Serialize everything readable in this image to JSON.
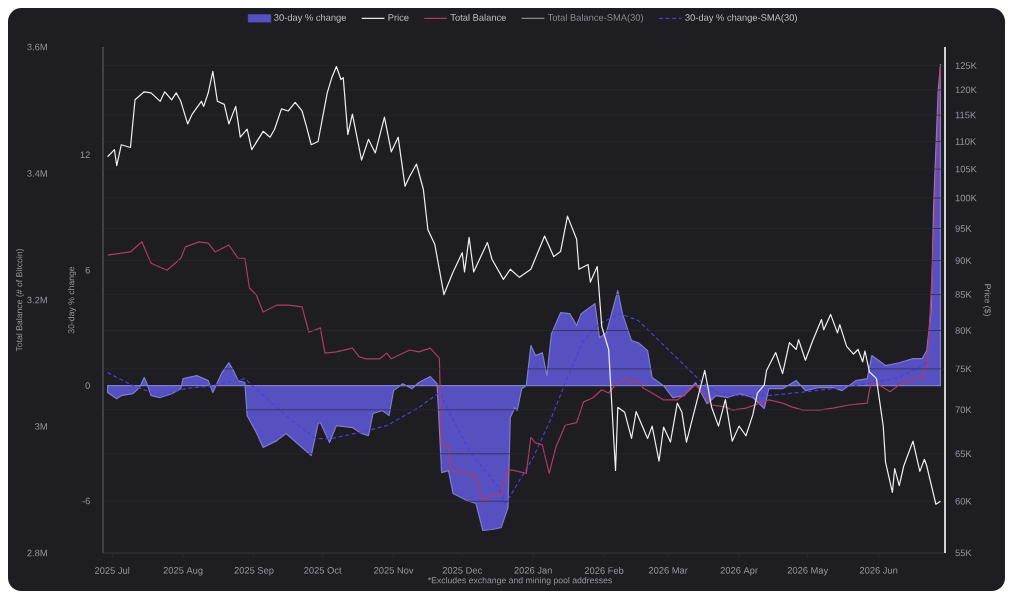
{
  "chart_data": {
    "type": "line",
    "xlim": [
      "2025-06-27",
      "2026-06-30"
    ],
    "xticks": [
      {
        "value": "2025-07-01",
        "label": "2025 Jul"
      },
      {
        "value": "2025-08-01",
        "label": "2025 Aug"
      },
      {
        "value": "2025-09-01",
        "label": "2025 Sep"
      },
      {
        "value": "2025-10-01",
        "label": "2025 Oct"
      },
      {
        "value": "2025-11-01",
        "label": "2025 Nov"
      },
      {
        "value": "2025-12-01",
        "label": "2025 Dec"
      },
      {
        "value": "2026-01-01",
        "label": "2026 Jan"
      },
      {
        "value": "2026-02-01",
        "label": "2026 Feb"
      },
      {
        "value": "2026-03-01",
        "label": "2026 Mar"
      },
      {
        "value": "2026-04-01",
        "label": "2026 Apr"
      },
      {
        "value": "2026-05-01",
        "label": "2026 May"
      },
      {
        "value": "2026-06-01",
        "label": "2026 Jun"
      }
    ],
    "ylabel": "Price ($)",
    "log": true,
    "ylim": [
      55000,
      129000
    ],
    "yticks": [
      {
        "value": 55000,
        "label": "55K"
      },
      {
        "value": 60000,
        "label": "60K"
      },
      {
        "value": 65000,
        "label": "65K"
      },
      {
        "value": 70000,
        "label": "70K"
      },
      {
        "value": 75000,
        "label": "75K"
      },
      {
        "value": 80000,
        "label": "80K"
      },
      {
        "value": 85000,
        "label": "85K"
      },
      {
        "value": 90000,
        "label": "90K"
      },
      {
        "value": 95000,
        "label": "95K"
      },
      {
        "value": 100000,
        "label": "100K"
      },
      {
        "value": 105000,
        "label": "105K"
      },
      {
        "value": 110000,
        "label": "110K"
      },
      {
        "value": 115000,
        "label": "115K"
      },
      {
        "value": 120000,
        "label": "120K"
      },
      {
        "value": 125000,
        "label": "125K"
      }
    ],
    "y2label": "Total Balance (# of Bitcoin)",
    "y2lim": [
      2800000,
      3600000
    ],
    "y2ticks": [
      {
        "value": 2800000,
        "label": "2.8M"
      },
      {
        "value": 3000000,
        "label": "3M"
      },
      {
        "value": 3200000,
        "label": "3.2M"
      },
      {
        "value": 3400000,
        "label": "3.4M"
      },
      {
        "value": 3600000,
        "label": "3.6M"
      }
    ],
    "y3label": "30-day % change",
    "y3lim": [
      -8.7,
      17.6
    ],
    "y3ticks": [
      -6,
      0,
      6,
      12
    ],
    "grid": "y",
    "legend": "top",
    "annotations": [
      "Total Balance-SMA(30)",
      "*Excludes exchange and mining pool addresses"
    ],
    "series": [
      {
        "name": "30-day % change",
        "type": "area",
        "axis": "y3",
        "color": "#5650c0",
        "x": [
          "2025-06-29",
          "2025-07-03",
          "2025-07-05",
          "2025-07-10",
          "2025-07-13",
          "2025-07-15",
          "2025-07-16",
          "2025-07-18",
          "2025-07-22",
          "2025-07-27",
          "2025-07-31",
          "2025-08-01",
          "2025-08-07",
          "2025-08-12",
          "2025-08-14",
          "2025-08-16",
          "2025-08-18",
          "2025-08-21",
          "2025-08-23",
          "2025-08-25",
          "2025-08-28",
          "2025-08-29",
          "2025-09-02",
          "2025-09-05",
          "2025-09-11",
          "2025-09-15",
          "2025-09-20",
          "2025-09-26",
          "2025-09-29",
          "2025-09-30",
          "2025-10-04",
          "2025-10-07",
          "2025-10-14",
          "2025-10-18",
          "2025-10-21",
          "2025-10-23",
          "2025-10-27",
          "2025-10-30",
          "2025-11-01",
          "2025-11-05",
          "2025-11-09",
          "2025-11-12",
          "2025-11-17",
          "2025-11-20",
          "2025-11-22",
          "2025-11-25",
          "2025-11-27",
          "2025-12-03",
          "2025-12-07",
          "2025-12-10",
          "2025-12-14",
          "2025-12-18",
          "2025-12-21",
          "2025-12-22",
          "2025-12-24",
          "2025-12-25",
          "2025-12-27",
          "2025-12-29",
          "2025-12-31",
          "2026-01-02",
          "2026-01-05",
          "2026-01-07",
          "2026-01-09",
          "2026-01-13",
          "2026-01-17",
          "2026-01-20",
          "2026-01-22",
          "2026-01-28",
          "2026-01-30",
          "2026-02-02",
          "2026-02-07",
          "2026-02-09",
          "2026-02-13",
          "2026-02-16",
          "2026-02-20",
          "2026-02-22",
          "2026-02-27",
          "2026-03-03",
          "2026-03-08",
          "2026-03-13",
          "2026-03-18",
          "2026-03-22",
          "2026-03-27",
          "2026-04-01",
          "2026-04-07",
          "2026-04-12",
          "2026-04-14",
          "2026-04-20",
          "2026-04-26",
          "2026-04-30",
          "2026-05-06",
          "2026-05-12",
          "2026-05-16",
          "2026-05-22",
          "2026-05-27",
          "2026-05-29",
          "2026-06-04",
          "2026-06-10",
          "2026-06-16",
          "2026-06-20",
          "2026-06-22",
          "2026-06-24",
          "2026-06-25",
          "2026-06-27",
          "2026-06-28"
        ],
        "values": [
          -0.36,
          -0.68,
          -0.52,
          -0.42,
          -0.1,
          0.42,
          0.16,
          -0.52,
          -0.62,
          -0.42,
          -0.16,
          0.36,
          0.52,
          0.26,
          -0.36,
          0.16,
          0.68,
          1.19,
          0.78,
          0.26,
          0.16,
          -1.56,
          -2.44,
          -3.22,
          -2.86,
          -2.49,
          -3.01,
          -3.64,
          -1.97,
          -1.92,
          -2.96,
          -2.08,
          -2.18,
          -2.49,
          -2.6,
          -1.45,
          -1.3,
          -1.56,
          -0.26,
          0.1,
          -0.16,
          0.16,
          0.47,
          0.1,
          -4.52,
          -4.42,
          -5.61,
          -5.97,
          -6.13,
          -7.53,
          -7.48,
          -7.38,
          -6.34,
          -1.66,
          -1.14,
          -1.3,
          -0.16,
          0,
          2.08,
          1.56,
          1.71,
          0.52,
          2.7,
          3.79,
          3.74,
          3.12,
          3.74,
          4.26,
          2.49,
          2.75,
          4.94,
          3.74,
          2.34,
          2.23,
          1.82,
          0.42,
          0,
          -0.62,
          -0.52,
          0.16,
          -0.94,
          -0.52,
          -0.62,
          -0.42,
          -0.62,
          -1.19,
          -0.16,
          -0.16,
          0.26,
          -0.26,
          -0.1,
          -0.1,
          -0.26,
          0.26,
          0.36,
          1.56,
          1.04,
          1.19,
          1.4,
          1.4,
          1.82,
          3.9,
          9.25,
          15.3,
          16.7
        ]
      },
      {
        "name": "Price",
        "axis": "y",
        "color": "#f0f0f2",
        "x": [
          "2025-06-29",
          "2025-07-02",
          "2025-07-03",
          "2025-07-05",
          "2025-07-09",
          "2025-07-11",
          "2025-07-15",
          "2025-07-18",
          "2025-07-22",
          "2025-07-24",
          "2025-07-27",
          "2025-07-29",
          "2025-07-31",
          "2025-08-03",
          "2025-08-05",
          "2025-08-09",
          "2025-08-10",
          "2025-08-12",
          "2025-08-14",
          "2025-08-16",
          "2025-08-19",
          "2025-08-21",
          "2025-08-24",
          "2025-08-26",
          "2025-08-29",
          "2025-08-31",
          "2025-09-05",
          "2025-09-08",
          "2025-09-10",
          "2025-09-13",
          "2025-09-16",
          "2025-09-19",
          "2025-09-22",
          "2025-09-24",
          "2025-09-26",
          "2025-09-29",
          "2025-10-01",
          "2025-10-03",
          "2025-10-05",
          "2025-10-07",
          "2025-10-09",
          "2025-10-10",
          "2025-10-12",
          "2025-10-14",
          "2025-10-18",
          "2025-10-21",
          "2025-10-24",
          "2025-10-28",
          "2025-10-31",
          "2025-11-03",
          "2025-11-06",
          "2025-11-08",
          "2025-11-11",
          "2025-11-14",
          "2025-11-16",
          "2025-11-19",
          "2025-11-23",
          "2025-11-27",
          "2025-12-01",
          "2025-12-02",
          "2025-12-04",
          "2025-12-06",
          "2025-12-12",
          "2025-12-14",
          "2025-12-19",
          "2025-12-22",
          "2025-12-26",
          "2025-12-31",
          "2026-01-06",
          "2026-01-10",
          "2026-01-13",
          "2026-01-16",
          "2026-01-20",
          "2026-01-21",
          "2026-01-25",
          "2026-01-26",
          "2026-01-29",
          "2026-01-31",
          "2026-02-03",
          "2026-02-06",
          "2026-02-07",
          "2026-02-10",
          "2026-02-13",
          "2026-02-15",
          "2026-02-20",
          "2026-02-22",
          "2026-02-25",
          "2026-02-27",
          "2026-03-02",
          "2026-03-05",
          "2026-03-07",
          "2026-03-09",
          "2026-03-14",
          "2026-03-17",
          "2026-03-20",
          "2026-03-23",
          "2026-03-26",
          "2026-03-29",
          "2026-04-01",
          "2026-04-04",
          "2026-04-07",
          "2026-04-09",
          "2026-04-12",
          "2026-04-13",
          "2026-04-17",
          "2026-04-20",
          "2026-04-23",
          "2026-04-26",
          "2026-04-27",
          "2026-04-30",
          "2026-05-03",
          "2026-05-07",
          "2026-05-08",
          "2026-05-11",
          "2026-05-14",
          "2026-05-15",
          "2026-05-18",
          "2026-05-21",
          "2026-05-23",
          "2026-05-25",
          "2026-05-26",
          "2026-05-28",
          "2026-05-31",
          "2026-06-03",
          "2026-06-04",
          "2026-06-07",
          "2026-06-08",
          "2026-06-10",
          "2026-06-12",
          "2026-06-16",
          "2026-06-19",
          "2026-06-21",
          "2026-06-22",
          "2026-06-26",
          "2026-06-28"
        ],
        "values": [
          107200,
          108500,
          105600,
          109400,
          108900,
          118000,
          119600,
          119400,
          117700,
          119600,
          118000,
          119400,
          117700,
          113300,
          115200,
          117700,
          116700,
          119400,
          123800,
          117700,
          117100,
          113300,
          116700,
          110800,
          112300,
          108500,
          111900,
          110800,
          112300,
          116200,
          115800,
          117500,
          115800,
          112700,
          109400,
          110000,
          114600,
          119400,
          122500,
          124800,
          122100,
          122500,
          111300,
          115200,
          106600,
          110400,
          107900,
          114600,
          108100,
          110800,
          102000,
          103700,
          105900,
          101500,
          94800,
          92500,
          85000,
          88300,
          91200,
          88300,
          93600,
          88300,
          92800,
          90200,
          87200,
          88700,
          87500,
          88700,
          93800,
          90600,
          91400,
          97000,
          93300,
          88700,
          89400,
          86800,
          89100,
          80500,
          77500,
          63200,
          70300,
          69700,
          66700,
          69800,
          66700,
          68100,
          64200,
          68000,
          66300,
          70800,
          69700,
          66300,
          71500,
          74800,
          70300,
          68100,
          71200,
          66400,
          68100,
          67000,
          69400,
          72000,
          73000,
          74800,
          77100,
          74400,
          78400,
          77500,
          78800,
          76100,
          78500,
          81500,
          80100,
          82200,
          79700,
          80800,
          77900,
          76900,
          77500,
          75900,
          77300,
          74600,
          73800,
          68100,
          64100,
          60900,
          63400,
          61600,
          63700,
          66400,
          63100,
          64400,
          63700,
          59700,
          60000
        ]
      },
      {
        "name": "Total Balance",
        "axis": "y2",
        "color": "#b23a66",
        "x": [
          "2025-06-29",
          "2025-07-09",
          "2025-07-14",
          "2025-07-18",
          "2025-07-25",
          "2025-07-31",
          "2025-08-02",
          "2025-08-08",
          "2025-08-12",
          "2025-08-15",
          "2025-08-21",
          "2025-08-25",
          "2025-08-28",
          "2025-08-30",
          "2025-09-02",
          "2025-09-05",
          "2025-09-11",
          "2025-09-16",
          "2025-09-22",
          "2025-09-25",
          "2025-09-30",
          "2025-10-02",
          "2025-10-07",
          "2025-10-14",
          "2025-10-17",
          "2025-10-20",
          "2025-10-26",
          "2025-10-29",
          "2025-10-31",
          "2025-11-08",
          "2025-11-12",
          "2025-11-17",
          "2025-11-21",
          "2025-11-22",
          "2025-11-25",
          "2025-11-26",
          "2025-12-03",
          "2025-12-07",
          "2025-12-10",
          "2025-12-14",
          "2025-12-18",
          "2025-12-21",
          "2025-12-23",
          "2025-12-29",
          "2025-12-31",
          "2026-01-02",
          "2026-01-05",
          "2026-01-08",
          "2026-01-11",
          "2026-01-15",
          "2026-01-20",
          "2026-01-23",
          "2026-01-27",
          "2026-01-31",
          "2026-02-03",
          "2026-02-06",
          "2026-02-11",
          "2026-02-13",
          "2026-02-16",
          "2026-02-18",
          "2026-02-22",
          "2026-02-27",
          "2026-03-05",
          "2026-03-09",
          "2026-03-13",
          "2026-03-16",
          "2026-03-20",
          "2026-03-26",
          "2026-03-29",
          "2026-04-04",
          "2026-04-10",
          "2026-04-14",
          "2026-04-20",
          "2026-04-24",
          "2026-04-29",
          "2026-05-06",
          "2026-05-12",
          "2026-05-19",
          "2026-05-27",
          "2026-05-28",
          "2026-05-29",
          "2026-06-01",
          "2026-06-06",
          "2026-06-10",
          "2026-06-15",
          "2026-06-20",
          "2026-06-22",
          "2026-06-23",
          "2026-06-26",
          "2026-06-28"
        ],
        "values": [
          3271000,
          3276000,
          3292000,
          3258000,
          3247000,
          3266000,
          3284000,
          3292000,
          3290000,
          3276000,
          3287000,
          3266000,
          3266000,
          3219000,
          3208000,
          3181000,
          3192000,
          3192000,
          3189000,
          3149000,
          3156000,
          3116000,
          3118000,
          3124000,
          3110000,
          3107000,
          3107000,
          3116000,
          3107000,
          3121000,
          3118000,
          3124000,
          3108000,
          2971000,
          2969000,
          2931000,
          2926000,
          2920000,
          2881000,
          2892000,
          2892000,
          2931000,
          2931000,
          2926000,
          2983000,
          2974000,
          2971000,
          2926000,
          2968000,
          3002000,
          3006000,
          3039000,
          3045000,
          3058000,
          3053000,
          3066000,
          3077000,
          3069000,
          3074000,
          3061000,
          3053000,
          3042000,
          3042000,
          3053000,
          3066000,
          3053000,
          3034000,
          3031000,
          3026000,
          3029000,
          3037000,
          3042000,
          3037000,
          3031000,
          3026000,
          3026000,
          3029000,
          3034000,
          3037000,
          3058000,
          3070000,
          3066000,
          3055000,
          3066000,
          3074000,
          3078000,
          3093000,
          3148000,
          3358000,
          3570000
        ]
      },
      {
        "name": "30-day % change-SMA(30)",
        "axis": "y3",
        "color": "#4b3fd6",
        "line_style": "dashed",
        "x": [
          "2025-06-29",
          "2025-07-10",
          "2025-07-22",
          "2025-08-02",
          "2025-08-14",
          "2025-08-28",
          "2025-09-06",
          "2025-09-16",
          "2025-09-28",
          "2025-10-05",
          "2025-10-17",
          "2025-10-29",
          "2025-11-12",
          "2025-11-21",
          "2025-12-04",
          "2025-12-17",
          "2025-12-20",
          "2026-01-01",
          "2026-01-09",
          "2026-01-16",
          "2026-01-23",
          "2026-01-30",
          "2026-02-08",
          "2026-02-16",
          "2026-02-25",
          "2026-03-06",
          "2026-03-15",
          "2026-03-23",
          "2026-04-01",
          "2026-04-13",
          "2026-04-27",
          "2026-05-12",
          "2026-05-27",
          "2026-06-10",
          "2026-06-22"
        ],
        "values": [
          0.68,
          0,
          -0.52,
          -0.16,
          0,
          0.36,
          -0.62,
          -1.66,
          -2.75,
          -2.75,
          -2.44,
          -2.08,
          -1.14,
          -0.36,
          -3.38,
          -5.3,
          -6.13,
          -3.74,
          -1.66,
          0.42,
          2.34,
          3.22,
          3.74,
          3.38,
          2.34,
          1.3,
          0.26,
          -0.42,
          -0.52,
          -0.52,
          -0.36,
          -0.16,
          0.1,
          0.42,
          1.19
        ]
      }
    ]
  }
}
